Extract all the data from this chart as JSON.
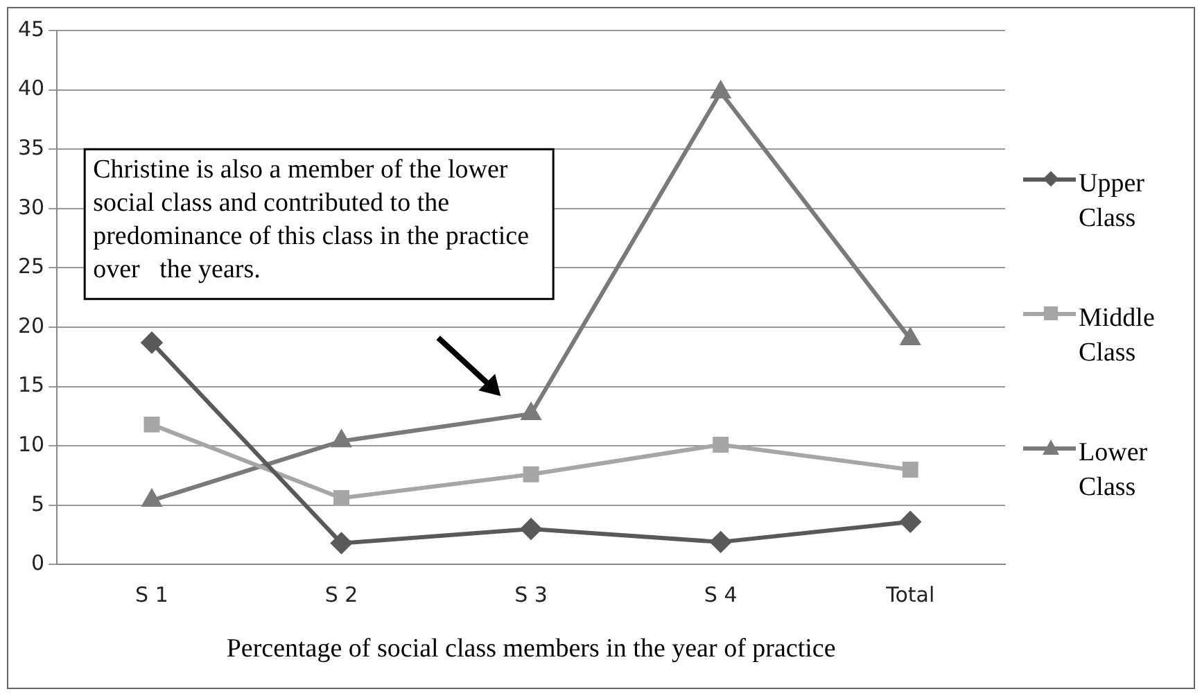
{
  "chart_data": {
    "type": "line",
    "xlabel": "Percentage of social class members in the year of practice",
    "categories": [
      "S 1",
      "S 2",
      "S 3",
      "S 4",
      "Total"
    ],
    "series": [
      {
        "name": "Upper Class",
        "color": "#595959",
        "marker": "diamond",
        "values": [
          18.7,
          1.8,
          3.0,
          1.9,
          3.6
        ]
      },
      {
        "name": "Middle Class",
        "color": "#a6a6a6",
        "marker": "square",
        "values": [
          11.8,
          5.6,
          7.6,
          10.1,
          8.0
        ]
      },
      {
        "name": "Lower Class",
        "color": "#7a7a7a",
        "marker": "triangle",
        "values": [
          5.4,
          10.4,
          12.7,
          39.8,
          19.0
        ]
      }
    ],
    "ylim": [
      0,
      45
    ],
    "yticks": [
      0,
      5,
      10,
      15,
      20,
      25,
      30,
      35,
      40,
      45
    ],
    "grid": "y",
    "legend": "right",
    "annotations": [
      "Christine is also a member of the lower social class and contributed to the predominance of this class in the practice  over   the years."
    ]
  }
}
